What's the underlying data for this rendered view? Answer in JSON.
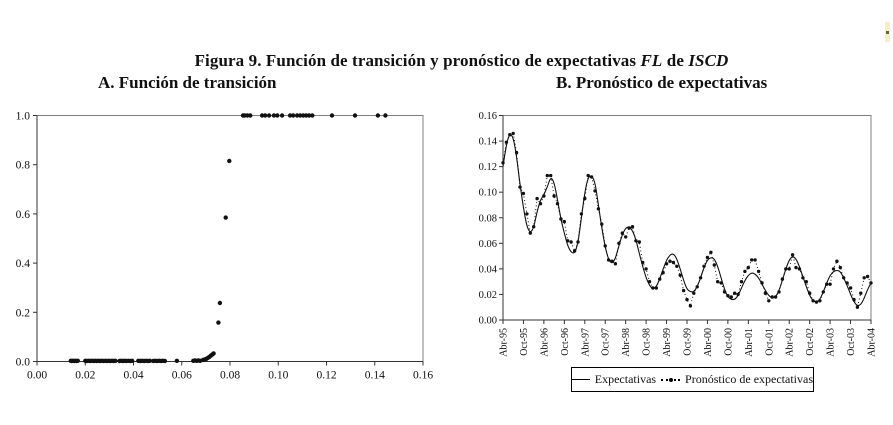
{
  "figure": {
    "title_main": "Figura 9. Función de transición y pronóstico de expectativas ",
    "title_fl": "FL",
    "title_de": " de ",
    "title_iscd": "ISCD",
    "panel_a_title": "A. Función de transición",
    "panel_b_title": "B. Pronóstico de expectativas"
  },
  "colors": {
    "ink": "#111111",
    "plot_border": "#818181",
    "axis_line": "#333333"
  },
  "chart_data": [
    {
      "type": "scatter",
      "title": "A. Función de transición",
      "xlabel": "",
      "ylabel": "",
      "xlim": [
        0,
        0.16
      ],
      "ylim": [
        0,
        1.0
      ],
      "grid": false,
      "xticks": [
        "0.00",
        "0.02",
        "0.04",
        "0.06",
        "0.08",
        "0.10",
        "0.12",
        "0.14",
        "0.16"
      ],
      "yticks": [
        "0.0",
        "0.2",
        "0.4",
        "0.6",
        "0.8",
        "1.0"
      ],
      "points": [
        [
          0.014,
          0.003
        ],
        [
          0.0144,
          0.002
        ],
        [
          0.0149,
          0.003
        ],
        [
          0.0154,
          0.002
        ],
        [
          0.0159,
          0.003
        ],
        [
          0.0164,
          0.002
        ],
        [
          0.0169,
          0.003
        ],
        [
          0.02,
          0.003
        ],
        [
          0.0206,
          0.002
        ],
        [
          0.0213,
          0.003
        ],
        [
          0.022,
          0.002
        ],
        [
          0.0227,
          0.003
        ],
        [
          0.0234,
          0.002
        ],
        [
          0.0241,
          0.003
        ],
        [
          0.0248,
          0.002
        ],
        [
          0.0255,
          0.003
        ],
        [
          0.0262,
          0.002
        ],
        [
          0.0269,
          0.003
        ],
        [
          0.0276,
          0.002
        ],
        [
          0.0283,
          0.003
        ],
        [
          0.029,
          0.002
        ],
        [
          0.0297,
          0.003
        ],
        [
          0.0304,
          0.002
        ],
        [
          0.0311,
          0.003
        ],
        [
          0.0318,
          0.002
        ],
        [
          0.0325,
          0.003
        ],
        [
          0.0342,
          0.002
        ],
        [
          0.0349,
          0.003
        ],
        [
          0.0356,
          0.002
        ],
        [
          0.0363,
          0.003
        ],
        [
          0.037,
          0.002
        ],
        [
          0.0378,
          0.003
        ],
        [
          0.0386,
          0.002
        ],
        [
          0.0394,
          0.003
        ],
        [
          0.042,
          0.003
        ],
        [
          0.0428,
          0.002
        ],
        [
          0.0436,
          0.003
        ],
        [
          0.0444,
          0.002
        ],
        [
          0.0452,
          0.003
        ],
        [
          0.046,
          0.002
        ],
        [
          0.0468,
          0.003
        ],
        [
          0.0482,
          0.002
        ],
        [
          0.049,
          0.003
        ],
        [
          0.0498,
          0.002
        ],
        [
          0.0506,
          0.003
        ],
        [
          0.0514,
          0.002
        ],
        [
          0.0522,
          0.003
        ],
        [
          0.053,
          0.002
        ],
        [
          0.058,
          0.003
        ],
        [
          0.0648,
          0.003
        ],
        [
          0.0655,
          0.004
        ],
        [
          0.0662,
          0.003
        ],
        [
          0.0669,
          0.004
        ],
        [
          0.0676,
          0.003
        ],
        [
          0.0688,
          0.006
        ],
        [
          0.0695,
          0.008
        ],
        [
          0.0702,
          0.011
        ],
        [
          0.0709,
          0.015
        ],
        [
          0.0715,
          0.019
        ],
        [
          0.0721,
          0.024
        ],
        [
          0.0727,
          0.029
        ],
        [
          0.0732,
          0.033
        ],
        [
          0.0752,
          0.158
        ],
        [
          0.0758,
          0.238
        ],
        [
          0.0782,
          0.585
        ],
        [
          0.0797,
          0.815
        ],
        [
          0.0854,
          1.0
        ],
        [
          0.0861,
          1.0
        ],
        [
          0.0872,
          1.0
        ],
        [
          0.0884,
          1.0
        ],
        [
          0.0933,
          1.0
        ],
        [
          0.0946,
          1.0
        ],
        [
          0.0962,
          1.0
        ],
        [
          0.0982,
          1.0
        ],
        [
          0.0996,
          1.0
        ],
        [
          0.1016,
          1.0
        ],
        [
          0.1049,
          1.0
        ],
        [
          0.1062,
          1.0
        ],
        [
          0.1078,
          1.0
        ],
        [
          0.1091,
          1.0
        ],
        [
          0.1104,
          1.0
        ],
        [
          0.1116,
          1.0
        ],
        [
          0.1128,
          1.0
        ],
        [
          0.1141,
          1.0
        ],
        [
          0.1223,
          1.0
        ],
        [
          0.1318,
          1.0
        ],
        [
          0.1413,
          1.0
        ],
        [
          0.1444,
          1.0
        ]
      ]
    },
    {
      "type": "line",
      "title": "B. Pronóstico de expectativas",
      "xlabel": "",
      "ylabel": "",
      "ylim": [
        0,
        0.16
      ],
      "grid": false,
      "legend_position": "bottom",
      "yticks": [
        "0.00",
        "0.02",
        "0.04",
        "0.06",
        "0.08",
        "0.10",
        "0.12",
        "0.14",
        "0.16"
      ],
      "x_tick_labels": [
        "Abr-95",
        "Oct-95",
        "Abr-96",
        "Oct-96",
        "Abr-97",
        "Oct-97",
        "Abr-98",
        "Oct-98",
        "Abr-99",
        "Oct-99",
        "Abr-00",
        "Oct-00",
        "Abr-01",
        "Oct-01",
        "Abr-02",
        "Oct-02",
        "Abr-03",
        "Oct-03",
        "Abr-04"
      ],
      "x_tick_every_n_points": 6,
      "n_points": 109,
      "series": [
        {
          "name": "Expectativas",
          "style": "solid",
          "values": [
            0.12,
            0.138,
            0.146,
            0.143,
            0.128,
            0.106,
            0.088,
            0.073,
            0.068,
            0.072,
            0.085,
            0.094,
            0.098,
            0.104,
            0.112,
            0.108,
            0.094,
            0.079,
            0.068,
            0.058,
            0.053,
            0.052,
            0.06,
            0.08,
            0.1,
            0.112,
            0.113,
            0.108,
            0.09,
            0.072,
            0.057,
            0.047,
            0.044,
            0.048,
            0.058,
            0.067,
            0.072,
            0.073,
            0.07,
            0.063,
            0.052,
            0.042,
            0.033,
            0.027,
            0.024,
            0.026,
            0.032,
            0.04,
            0.047,
            0.051,
            0.052,
            0.048,
            0.04,
            0.031,
            0.024,
            0.022,
            0.022,
            0.026,
            0.033,
            0.041,
            0.047,
            0.049,
            0.048,
            0.042,
            0.033,
            0.024,
            0.018,
            0.016,
            0.016,
            0.019,
            0.025,
            0.031,
            0.035,
            0.037,
            0.036,
            0.033,
            0.028,
            0.023,
            0.019,
            0.017,
            0.018,
            0.023,
            0.031,
            0.04,
            0.047,
            0.05,
            0.048,
            0.042,
            0.034,
            0.026,
            0.019,
            0.015,
            0.014,
            0.016,
            0.022,
            0.029,
            0.035,
            0.038,
            0.039,
            0.038,
            0.033,
            0.027,
            0.02,
            0.014,
            0.011,
            0.012,
            0.017,
            0.024,
            0.029
          ]
        },
        {
          "name": "Pronóstico de expectativas",
          "style": "dotted-markers",
          "values": [
            0.123,
            0.139,
            0.145,
            0.146,
            0.131,
            0.104,
            0.099,
            0.083,
            0.068,
            0.073,
            0.095,
            0.091,
            0.097,
            0.113,
            0.113,
            0.097,
            0.091,
            0.079,
            0.077,
            0.062,
            0.061,
            0.054,
            0.061,
            0.083,
            0.095,
            0.113,
            0.112,
            0.101,
            0.087,
            0.075,
            0.058,
            0.047,
            0.046,
            0.044,
            0.06,
            0.068,
            0.065,
            0.072,
            0.073,
            0.062,
            0.061,
            0.045,
            0.04,
            0.03,
            0.025,
            0.025,
            0.032,
            0.037,
            0.044,
            0.046,
            0.045,
            0.042,
            0.035,
            0.023,
            0.016,
            0.011,
            0.021,
            0.026,
            0.033,
            0.042,
            0.049,
            0.053,
            0.043,
            0.03,
            0.029,
            0.022,
            0.019,
            0.018,
            0.021,
            0.02,
            0.03,
            0.038,
            0.041,
            0.047,
            0.047,
            0.038,
            0.029,
            0.021,
            0.015,
            0.018,
            0.018,
            0.022,
            0.032,
            0.04,
            0.04,
            0.051,
            0.041,
            0.04,
            0.033,
            0.03,
            0.021,
            0.015,
            0.014,
            0.015,
            0.022,
            0.028,
            0.028,
            0.04,
            0.046,
            0.041,
            0.033,
            0.029,
            0.025,
            0.016,
            0.01,
            0.021,
            0.033,
            0.034,
            0.029
          ]
        }
      ]
    }
  ]
}
